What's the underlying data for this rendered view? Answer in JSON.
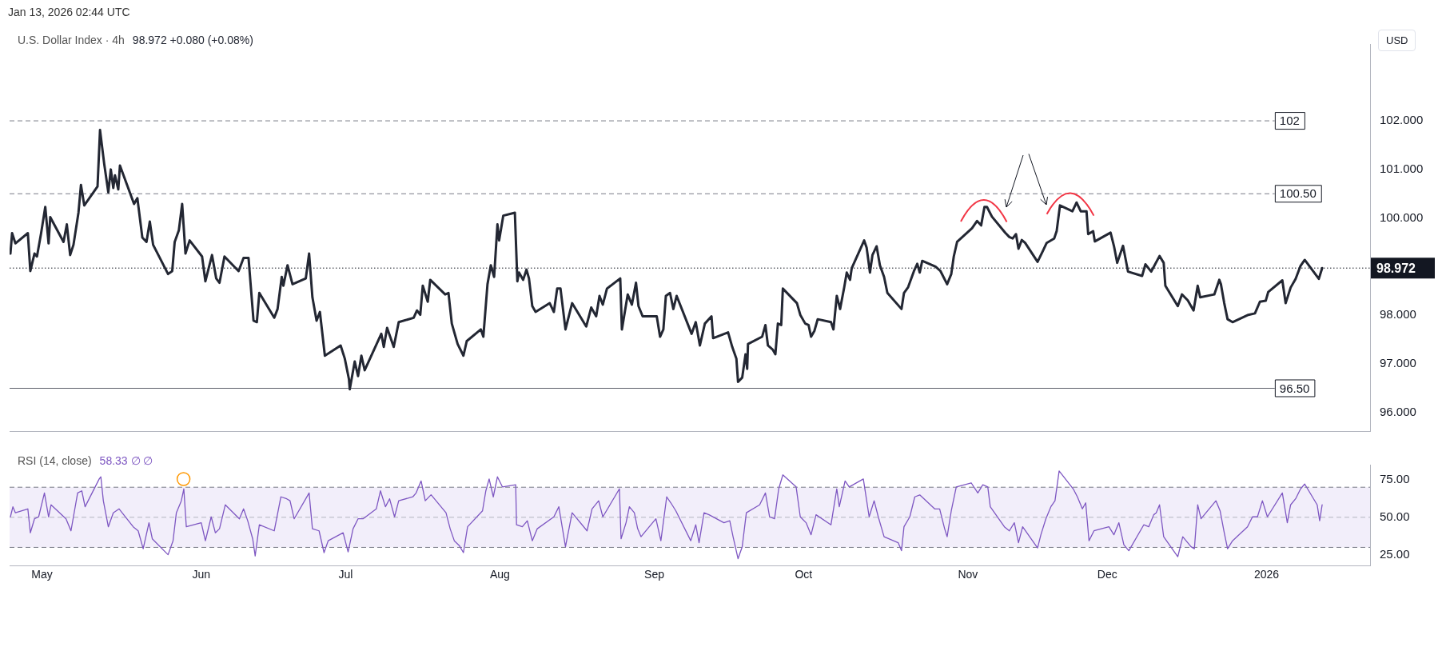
{
  "chart_data": [
    {
      "type": "line",
      "title": "U.S. Dollar Index · 4h",
      "subtitle": "98.972  +0.080 (+0.08%)",
      "ylabel": "USD",
      "annotations": [
        "Jan 13, 2026 02:44 UTC"
      ],
      "x": [
        "2025-04-24T16:00",
        "2025-04-25T00:00",
        "2025-04-25T16:00",
        "2025-04-28T04:00",
        "2025-04-28T16:00",
        "2025-04-29T12:00",
        "2025-04-30T00:00",
        "2025-04-30T20:00",
        "2025-05-01T16:00",
        "2025-05-02T08:00",
        "2025-05-02T16:00",
        "2025-05-05T08:00",
        "2025-05-06T00:00",
        "2025-05-06T16:00",
        "2025-05-07T08:00",
        "2025-05-08T08:00",
        "2025-05-08T20:00",
        "2025-05-09T12:00",
        "2025-05-12T04:00",
        "2025-05-12T16:00",
        "2025-05-13T12:00",
        "2025-05-14T08:00",
        "2025-05-14T20:00",
        "2025-05-15T08:00",
        "2025-05-15T16:00",
        "2025-05-16T08:00",
        "2025-05-16T16:00",
        "2025-05-19T12:00",
        "2025-05-20T04:00",
        "2025-05-21T04:00",
        "2025-05-22T00:00",
        "2025-05-22T16:00",
        "2025-05-23T08:00",
        "2025-05-26T08:00",
        "2025-05-27T04:00",
        "2025-05-27T16:00",
        "2025-05-28T12:00",
        "2025-05-29T04:00",
        "2025-05-29T20:00",
        "2025-05-30T16:00",
        "2025-06-02T04:00",
        "2025-06-02T20:00",
        "2025-06-04T04:00",
        "2025-06-05T00:00",
        "2025-06-05T16:00",
        "2025-06-06T16:00",
        "2025-06-09T12:00",
        "2025-06-10T12:00",
        "2025-06-11T12:00",
        "2025-06-12T12:00",
        "2025-06-13T04:00",
        "2025-06-13T16:00",
        "2025-06-16T16:00",
        "2025-06-17T08:00",
        "2025-06-18T04:00",
        "2025-06-18T12:00",
        "2025-06-19T08:00",
        "2025-06-20T08:00",
        "2025-06-23T00:00",
        "2025-06-23T16:00",
        "2025-06-24T08:00",
        "2025-06-25T04:00",
        "2025-06-25T20:00",
        "2025-06-26T20:00",
        "2025-06-30T00:00",
        "2025-06-30T20:00",
        "2025-07-01T16:00",
        "2025-07-01T20:00",
        "2025-07-02T20:00",
        "2025-07-03T12:00",
        "2025-07-04T04:00",
        "2025-07-04T20:00",
        "2025-07-08T04:00",
        "2025-07-08T16:00",
        "2025-07-09T08:00",
        "2025-07-10T16:00",
        "2025-07-11T16:00",
        "2025-07-14T16:00",
        "2025-07-15T08:00",
        "2025-07-16T00:00",
        "2025-07-16T12:00",
        "2025-07-17T12:00",
        "2025-07-18T00:00",
        "2025-07-21T00:00",
        "2025-07-21T16:00",
        "2025-07-22T08:00",
        "2025-07-23T12:00",
        "2025-07-24T16:00",
        "2025-07-25T08:00",
        "2025-07-28T04:00",
        "2025-07-28T16:00",
        "2025-07-29T12:00",
        "2025-07-30T04:00",
        "2025-07-30T20:00",
        "2025-07-31T12:00",
        "2025-07-31T20:00",
        "2025-08-01T16:00",
        "2025-08-04T00:00",
        "2025-08-04T12:00",
        "2025-08-04T20:00",
        "2025-08-05T16:00",
        "2025-08-06T08:00",
        "2025-08-06T20:00",
        "2025-08-07T12:00",
        "2025-08-08T04:00",
        "2025-08-11T00:00",
        "2025-08-11T20:00",
        "2025-08-12T12:00",
        "2025-08-13T04:00",
        "2025-08-14T04:00",
        "2025-08-15T12:00",
        "2025-08-18T08:00",
        "2025-08-19T08:00",
        "2025-08-20T08:00",
        "2025-08-21T00:00",
        "2025-08-21T16:00",
        "2025-08-22T12:00",
        "2025-08-25T04:00",
        "2025-08-25T12:00",
        "2025-08-26T16:00",
        "2025-08-27T12:00",
        "2025-08-28T08:00",
        "2025-08-28T20:00",
        "2025-08-29T16:00",
        "2025-09-01T12:00",
        "2025-09-02T04:00",
        "2025-09-02T20:00",
        "2025-09-03T08:00",
        "2025-09-04T04:00",
        "2025-09-04T20:00",
        "2025-09-05T12:00",
        "2025-09-08T12:00",
        "2025-09-09T08:00",
        "2025-09-10T04:00",
        "2025-09-11T04:00",
        "2025-09-12T12:00",
        "2025-09-12T20:00",
        "2025-09-15T20:00",
        "2025-09-16T16:00",
        "2025-09-17T12:00",
        "2025-09-17T20:00",
        "2025-09-18T16:00",
        "2025-09-19T08:00",
        "2025-09-19T16:00",
        "2025-09-19T20:00",
        "2025-09-22T16:00",
        "2025-09-23T08:00",
        "2025-09-23T20:00",
        "2025-09-24T20:00",
        "2025-09-25T08:00",
        "2025-09-25T20:00",
        "2025-09-26T12:00",
        "2025-09-26T20:00",
        "2025-09-29T16:00",
        "2025-09-30T08:00",
        "2025-10-01T08:00",
        "2025-10-02T00:00",
        "2025-10-02T12:00",
        "2025-10-03T04:00",
        "2025-10-03T20:00",
        "2025-10-06T12:00",
        "2025-10-07T00:00",
        "2025-10-07T16:00",
        "2025-10-08T08:00",
        "2025-10-09T04:00",
        "2025-10-09T16:00",
        "2025-10-10T08:00",
        "2025-10-10T16:00",
        "2025-10-13T04:00",
        "2025-10-13T16:00",
        "2025-10-14T08:00",
        "2025-10-14T20:00",
        "2025-10-15T16:00",
        "2025-10-16T08:00",
        "2025-10-17T04:00",
        "2025-10-17T20:00",
        "2025-10-20T16:00",
        "2025-10-21T04:00",
        "2025-10-22T00:00",
        "2025-10-23T04:00",
        "2025-10-23T20:00",
        "2025-10-24T08:00",
        "2025-10-24T20:00",
        "2025-10-27T12:00",
        "2025-10-28T12:00",
        "2025-10-29T20:00",
        "2025-10-30T16:00",
        "2025-10-31T04:00",
        "2025-10-31T20:00",
        "2025-11-03T20:00",
        "2025-11-04T20:00",
        "2025-11-05T16:00",
        "2025-11-06T08:00",
        "2025-11-06T20:00",
        "2025-11-07T20:00",
        "2025-11-10T12:00",
        "2025-11-11T08:00",
        "2025-11-12T00:00",
        "2025-11-12T16:00",
        "2025-11-13T04:00",
        "2025-11-13T20:00",
        "2025-11-14T12:00",
        "2025-11-17T00:00",
        "2025-11-18T00:00",
        "2025-11-18T20:00",
        "2025-11-20T08:00",
        "2025-11-20T20:00",
        "2025-11-21T12:00",
        "2025-11-24T00:00",
        "2025-11-24T20:00",
        "2025-11-25T16:00",
        "2025-11-26T20:00",
        "2025-11-27T04:00",
        "2025-11-28T04:00",
        "2025-11-28T12:00",
        "2025-12-01T16:00",
        "2025-12-02T08:00",
        "2025-12-03T00:00",
        "2025-12-04T04:00",
        "2025-12-05T04:00",
        "2025-12-08T00:00",
        "2025-12-08T16:00",
        "2025-12-09T20:00",
        "2025-12-11T12:00",
        "2025-12-12T08:00",
        "2025-12-12T16:00",
        "2025-12-15T04:00",
        "2025-12-16T00:00",
        "2025-12-17T04:00",
        "2025-12-18T08:00",
        "2025-12-19T04:00",
        "2025-12-19T16:00",
        "2025-12-22T12:00",
        "2025-12-23T12:00",
        "2025-12-23T20:00",
        "2025-12-24T12:00",
        "2025-12-25T04:00",
        "2025-12-26T04:00",
        "2025-12-29T08:00",
        "2025-12-30T16:00",
        "2025-12-31T16:00",
        "2026-01-01T20:00",
        "2026-01-02T08:00",
        "2026-01-05T04:00",
        "2026-01-05T20:00",
        "2026-01-06T20:00",
        "2026-01-07T20:00",
        "2026-01-08T20:00",
        "2026-01-09T16:00",
        "2026-01-12T12:00",
        "2026-01-13T04:00"
      ],
      "series": [
        {
          "color": "#232733",
          "values": [
            99.27,
            99.69,
            99.48,
            99.69,
            98.91,
            99.27,
            99.21,
            99.69,
            100.23,
            99.48,
            100.02,
            99.51,
            99.87,
            99.24,
            99.45,
            100.11,
            100.68,
            100.26,
            100.65,
            101.81,
            101.12,
            100.53,
            101.0,
            100.62,
            100.88,
            100.59,
            101.08,
            100.29,
            100.41,
            99.6,
            99.51,
            99.93,
            99.45,
            98.85,
            98.91,
            99.51,
            99.75,
            100.29,
            99.27,
            99.54,
            99.21,
            98.7,
            99.24,
            98.76,
            98.67,
            99.21,
            98.91,
            99.18,
            99.18,
            97.89,
            97.86,
            98.46,
            97.95,
            98.13,
            98.79,
            98.61,
            99.03,
            98.64,
            98.76,
            99.27,
            98.37,
            97.89,
            98.07,
            97.17,
            97.38,
            97.11,
            96.69,
            96.48,
            97.05,
            96.75,
            97.17,
            96.87,
            97.62,
            97.35,
            97.74,
            97.35,
            97.86,
            97.95,
            98.1,
            98.01,
            98.61,
            98.28,
            98.73,
            98.43,
            98.46,
            97.83,
            97.41,
            97.17,
            97.47,
            97.71,
            97.56,
            98.64,
            99.03,
            98.79,
            99.87,
            99.54,
            100.05,
            100.11,
            98.7,
            98.88,
            98.73,
            98.94,
            98.76,
            98.19,
            98.07,
            98.25,
            98.07,
            98.55,
            98.55,
            97.71,
            98.25,
            97.77,
            98.16,
            97.98,
            98.4,
            98.22,
            98.55,
            98.76,
            97.71,
            98.43,
            98.22,
            98.67,
            98.19,
            97.98,
            97.98,
            97.56,
            97.71,
            98.4,
            98.46,
            98.13,
            98.4,
            97.62,
            97.86,
            97.38,
            97.83,
            97.98,
            97.53,
            97.65,
            97.35,
            97.11,
            96.63,
            96.72,
            97.2,
            96.9,
            97.41,
            97.56,
            97.8,
            97.38,
            97.29,
            97.2,
            97.83,
            97.8,
            98.55,
            98.25,
            98.01,
            97.83,
            97.8,
            97.56,
            97.68,
            97.92,
            97.86,
            97.71,
            98.4,
            98.13,
            98.58,
            98.88,
            98.73,
            98.97,
            99.54,
            99.39,
            98.88,
            99.24,
            99.42,
            99.03,
            98.79,
            98.46,
            98.13,
            98.46,
            98.58,
            98.91,
            99.06,
            98.88,
            99.12,
            99.0,
            98.91,
            98.64,
            98.85,
            99.21,
            99.51,
            99.79,
            99.94,
            99.85,
            100.23,
            100.23,
            100.03,
            99.7,
            99.61,
            99.58,
            99.67,
            99.37,
            99.55,
            99.49,
            99.1,
            99.31,
            99.49,
            99.58,
            99.73,
            100.26,
            100.14,
            100.32,
            100.14,
            100.14,
            99.67,
            99.73,
            99.52,
            99.7,
            99.43,
            99.08,
            99.43,
            98.9,
            98.81,
            99.05,
            98.9,
            99.22,
            99.08,
            98.61,
            98.19,
            98.43,
            98.31,
            98.1,
            98.61,
            98.37,
            98.43,
            98.73,
            98.64,
            98.25,
            97.92,
            97.86,
            98.01,
            98.04,
            98.28,
            98.3,
            98.48,
            98.72,
            98.25,
            98.57,
            98.75,
            99.02,
            99.14,
            98.75,
            98.972
          ]
        }
      ],
      "xlim": [
        "2025-04-24T12:00",
        "2026-01-22T19:00"
      ],
      "ylim": [
        95.62,
        103.58
      ],
      "yticks": [
        {
          "value": 96,
          "label": "96.000"
        },
        {
          "value": 97,
          "label": "97.000"
        },
        {
          "value": 98,
          "label": "98.000"
        },
        {
          "value": 100,
          "label": "100.000"
        },
        {
          "value": 101,
          "label": "101.000"
        },
        {
          "value": 102,
          "label": "102.000"
        }
      ],
      "ref_lines": [
        {
          "axis": "y",
          "value": 102,
          "label": "102",
          "line_style": "dashed",
          "color": "#787b86"
        },
        {
          "axis": "y",
          "value": 100.5,
          "label": "100.50",
          "line_style": "dashed",
          "color": "#787b86"
        },
        {
          "axis": "y",
          "value": 96.5,
          "label": "96.50",
          "line_style": "solid",
          "color": "#5d606b"
        },
        {
          "axis": "y",
          "value": 98.972,
          "label": "98.972",
          "line_style": "dotted",
          "color": "#131722"
        }
      ],
      "tick_labels": "y",
      "grid": false,
      "legend": false,
      "marker": "none",
      "line_style": "solid"
    },
    {
      "type": "line",
      "title": "RSI (14, close)",
      "subtitle": "58.33 ∅ ∅",
      "x": [
        "2025-04-24T16:00",
        "2025-04-25T04:00",
        "2025-04-25T16:00",
        "2025-04-28T04:00",
        "2025-04-28T16:00",
        "2025-04-29T12:00",
        "2025-04-30T08:00",
        "2025-05-01T12:00",
        "2025-05-02T08:00",
        "2025-05-02T20:00",
        "2025-05-05T20:00",
        "2025-05-06T20:00",
        "2025-05-08T04:00",
        "2025-05-09T00:00",
        "2025-05-09T16:00",
        "2025-05-12T12:00",
        "2025-05-12T20:00",
        "2025-05-13T08:00",
        "2025-05-14T08:00",
        "2025-05-15T08:00",
        "2025-05-16T12:00",
        "2025-05-19T08:00",
        "2025-05-20T08:00",
        "2025-05-21T08:00",
        "2025-05-22T12:00",
        "2025-05-23T04:00",
        "2025-05-26T08:00",
        "2025-05-27T08:00",
        "2025-05-28T00:00",
        "2025-05-29T00:00",
        "2025-05-29T12:00",
        "2025-05-30T00:00",
        "2025-06-02T00:00",
        "2025-06-02T20:00",
        "2025-06-04T00:00",
        "2025-06-04T20:00",
        "2025-06-05T16:00",
        "2025-06-06T20:00",
        "2025-06-09T16:00",
        "2025-06-10T12:00",
        "2025-06-11T08:00",
        "2025-06-12T08:00",
        "2025-06-12T20:00",
        "2025-06-13T16:00",
        "2025-06-16T16:00",
        "2025-06-18T00:00",
        "2025-06-19T04:00",
        "2025-06-19T20:00",
        "2025-06-20T16:00",
        "2025-06-23T16:00",
        "2025-06-24T08:00",
        "2025-06-25T16:00",
        "2025-06-26T16:00",
        "2025-06-27T12:00",
        "2025-06-30T12:00",
        "2025-07-01T12:00",
        "2025-07-02T12:00",
        "2025-07-03T12:00",
        "2025-07-04T12:00",
        "2025-07-07T04:00",
        "2025-07-08T00:00",
        "2025-07-09T00:00",
        "2025-07-09T20:00",
        "2025-07-10T20:00",
        "2025-07-11T16:00",
        "2025-07-14T12:00",
        "2025-07-15T04:00",
        "2025-07-16T04:00",
        "2025-07-17T00:00",
        "2025-07-18T04:00",
        "2025-07-21T04:00",
        "2025-07-22T00:00",
        "2025-07-22T20:00",
        "2025-07-23T20:00",
        "2025-07-24T16:00",
        "2025-07-25T12:00",
        "2025-07-28T12:00",
        "2025-07-29T04:00",
        "2025-07-29T20:00",
        "2025-07-30T16:00",
        "2025-07-31T12:00",
        "2025-08-01T12:00",
        "2025-08-04T04:00",
        "2025-08-04T08:00",
        "2025-08-05T12:00",
        "2025-08-06T12:00",
        "2025-08-07T12:00",
        "2025-08-08T12:00",
        "2025-08-11T20:00",
        "2025-08-12T20:00",
        "2025-08-14T04:00",
        "2025-08-15T12:00",
        "2025-08-18T12:00",
        "2025-08-19T12:00",
        "2025-08-20T20:00",
        "2025-08-21T16:00",
        "2025-08-25T00:00",
        "2025-08-25T08:00",
        "2025-08-26T08:00",
        "2025-08-27T00:00",
        "2025-08-28T00:00",
        "2025-08-28T16:00",
        "2025-08-29T08:00",
        "2025-09-01T08:00",
        "2025-09-02T08:00",
        "2025-09-03T12:00",
        "2025-09-04T08:00",
        "2025-09-05T08:00",
        "2025-09-08T08:00",
        "2025-09-09T08:00",
        "2025-09-10T00:00",
        "2025-09-11T00:00",
        "2025-09-12T00:00",
        "2025-09-15T00:00",
        "2025-09-16T04:00",
        "2025-09-16T20:00",
        "2025-09-17T20:00",
        "2025-09-18T16:00",
        "2025-09-19T12:00",
        "2025-09-22T04:00",
        "2025-09-23T08:00",
        "2025-09-24T04:00",
        "2025-09-25T04:00",
        "2025-09-26T00:00",
        "2025-09-26T20:00",
        "2025-09-29T12:00",
        "2025-09-30T08:00",
        "2025-10-01T12:00",
        "2025-10-02T12:00",
        "2025-10-03T12:00",
        "2025-10-06T12:00",
        "2025-10-07T16:00",
        "2025-10-08T04:00",
        "2025-10-09T08:00",
        "2025-10-10T04:00",
        "2025-10-13T00:00",
        "2025-10-14T04:00",
        "2025-10-15T04:00",
        "2025-10-16T00:00",
        "2025-10-17T04:00",
        "2025-10-20T00:00",
        "2025-10-20T16:00",
        "2025-10-21T04:00",
        "2025-10-22T08:00",
        "2025-10-23T08:00",
        "2025-10-24T08:00",
        "2025-10-27T08:00",
        "2025-10-28T08:00",
        "2025-10-29T08:00",
        "2025-10-29T20:00",
        "2025-10-30T16:00",
        "2025-10-31T16:00",
        "2025-11-03T16:00",
        "2025-11-05T00:00",
        "2025-11-06T00:00",
        "2025-11-07T00:00",
        "2025-11-07T12:00",
        "2025-11-10T08:00",
        "2025-11-11T08:00",
        "2025-11-12T08:00",
        "2025-11-13T04:00",
        "2025-11-14T00:00",
        "2025-11-17T00:00",
        "2025-11-17T16:00",
        "2025-11-18T16:00",
        "2025-11-19T16:00",
        "2025-11-20T12:00",
        "2025-11-21T08:00",
        "2025-11-24T04:00",
        "2025-11-25T00:00",
        "2025-11-26T00:00",
        "2025-11-26T16:00",
        "2025-11-27T08:00",
        "2025-11-28T08:00",
        "2025-12-01T08:00",
        "2025-12-02T08:00",
        "2025-12-03T08:00",
        "2025-12-04T08:00",
        "2025-12-05T08:00",
        "2025-12-08T08:00",
        "2025-12-09T08:00",
        "2025-12-10T08:00",
        "2025-12-10T20:00",
        "2025-12-11T12:00",
        "2025-12-12T08:00",
        "2025-12-15T04:00",
        "2025-12-16T04:00",
        "2025-12-16T20:00",
        "2025-12-17T20:00",
        "2025-12-18T12:00",
        "2025-12-19T04:00",
        "2025-12-19T20:00",
        "2025-12-22T20:00",
        "2025-12-23T16:00",
        "2025-12-24T12:00",
        "2025-12-25T04:00",
        "2025-12-26T04:00",
        "2025-12-29T04:00",
        "2025-12-30T04:00",
        "2025-12-31T04:00",
        "2026-01-01T04:00",
        "2026-01-02T04:00",
        "2026-01-05T04:00",
        "2026-01-06T04:00",
        "2026-01-06T20:00",
        "2026-01-07T20:00",
        "2026-01-08T20:00",
        "2026-01-09T16:00",
        "2026-01-12T04:00",
        "2026-01-12T16:00",
        "2026-01-13T04:00"
      ],
      "series": [
        {
          "color": "#7e57c2",
          "values": [
            50.3,
            57,
            53,
            55.6,
            39.7,
            49,
            50.3,
            66.2,
            50.3,
            58.3,
            49,
            41,
            66.2,
            67.6,
            57,
            75.5,
            76.9,
            61,
            43.7,
            53,
            55.6,
            43.7,
            41,
            29.1,
            46.4,
            35.7,
            25.1,
            34.4,
            53,
            61,
            68.9,
            43.7,
            46.4,
            34.4,
            50.3,
            39.7,
            42.4,
            58.3,
            49,
            55.6,
            47.7,
            35.7,
            24.3,
            45,
            41,
            63.6,
            62.3,
            61,
            49,
            66.2,
            42.4,
            41,
            26.5,
            34.4,
            39.7,
            27,
            42.4,
            49,
            49,
            55.6,
            67.6,
            57,
            62.3,
            50.3,
            61,
            63.6,
            66.2,
            74.2,
            61,
            65,
            53,
            42.4,
            34.4,
            31.2,
            26.5,
            43.7,
            54.3,
            67.6,
            75.5,
            63.6,
            76.9,
            70.2,
            71.6,
            45,
            43.7,
            47.7,
            34.4,
            42.4,
            50.3,
            57,
            30.4,
            53,
            41,
            55.6,
            61,
            50.3,
            68.9,
            35.7,
            46.4,
            57,
            53,
            42.4,
            37.1,
            49,
            34.4,
            63.6,
            59.6,
            54.3,
            34.4,
            45,
            33.1,
            53,
            51.7,
            46.4,
            47.7,
            37.1,
            22.5,
            30.4,
            53,
            58.3,
            66.2,
            50.3,
            49,
            68.9,
            78.2,
            70.2,
            50.3,
            46.4,
            38.4,
            51.7,
            45,
            68.9,
            57,
            74.2,
            70.2,
            75.5,
            50.3,
            61,
            50.3,
            37.1,
            33.1,
            27.8,
            43.7,
            50.3,
            63.6,
            64.9,
            55.6,
            55.6,
            42.4,
            37.1,
            54.3,
            70.2,
            72.9,
            66.2,
            71.6,
            70.2,
            57,
            43.7,
            41,
            46.4,
            33.1,
            43.7,
            29.6,
            38.4,
            49,
            57,
            61,
            80.8,
            68.9,
            63.6,
            55.6,
            59.6,
            34.4,
            41,
            43.7,
            38.4,
            46.4,
            31.8,
            27.8,
            45,
            43.7,
            51.7,
            53,
            58.3,
            37.1,
            23.8,
            37.1,
            34.4,
            30.4,
            29.1,
            58.3,
            49,
            61,
            54.3,
            39.7,
            29.1,
            34.4,
            43.7,
            50.3,
            50.3,
            61,
            50.3,
            66.2,
            46.4,
            58.3,
            62.3,
            68.9,
            72.1,
            58.3,
            47.7,
            58.33
          ]
        }
      ],
      "xlim": [
        "2025-04-24T12:00",
        "2026-01-22T19:00"
      ],
      "xticks": [
        {
          "value": "2025-05-01",
          "label": "May"
        },
        {
          "value": "2025-06-02",
          "label": "Jun"
        },
        {
          "value": "2025-07-01",
          "label": "Jul"
        },
        {
          "value": "2025-08-01",
          "label": "Aug"
        },
        {
          "value": "2025-09-01",
          "label": "Sep"
        },
        {
          "value": "2025-10-01",
          "label": "Oct"
        },
        {
          "value": "2025-11-03",
          "label": "Nov"
        },
        {
          "value": "2025-12-01",
          "label": "Dec"
        },
        {
          "value": "2026-01-02",
          "label": "2026"
        }
      ],
      "ylim": [
        18,
        85
      ],
      "yticks": [
        {
          "value": 25,
          "label": "25.00"
        },
        {
          "value": 50,
          "label": "50.00"
        },
        {
          "value": 75,
          "label": "75.00"
        }
      ],
      "bands": [
        {
          "axis": "y",
          "from": 30,
          "to": 70,
          "color": "#f2eefa"
        }
      ],
      "ref_lines": [
        {
          "axis": "y",
          "value": 70,
          "line_style": "dashed",
          "color": "#787b86"
        },
        {
          "axis": "y",
          "value": 50,
          "line_style": "dashed",
          "color": "#b2b5be"
        },
        {
          "axis": "y",
          "value": 30,
          "line_style": "dashed",
          "color": "#787b86"
        }
      ],
      "grid": false,
      "legend": false,
      "marker": "none",
      "line_style": "solid"
    }
  ]
}
